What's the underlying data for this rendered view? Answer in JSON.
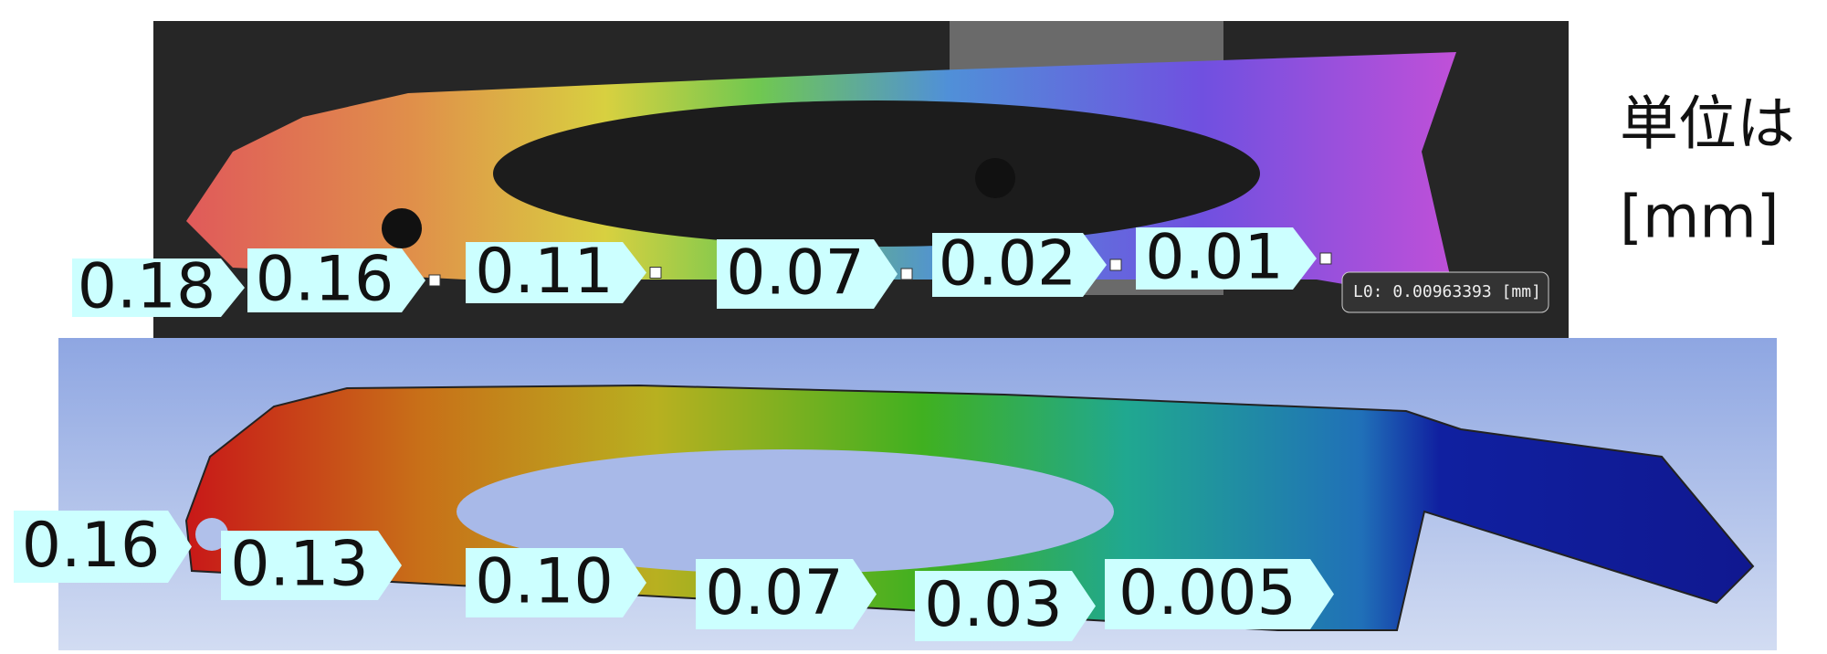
{
  "unit_note": {
    "line1": "単位は",
    "line2": "[mm]"
  },
  "measurement_overlay": "L0: 0.00963393 [mm]",
  "experiment_labels": [
    "0.18",
    "0.16",
    "0.11",
    "0.07",
    "0.02",
    "0.01"
  ],
  "simulation_labels": [
    "0.16",
    "0.13",
    "0.10",
    "0.07",
    "0.03",
    "0.005"
  ]
}
